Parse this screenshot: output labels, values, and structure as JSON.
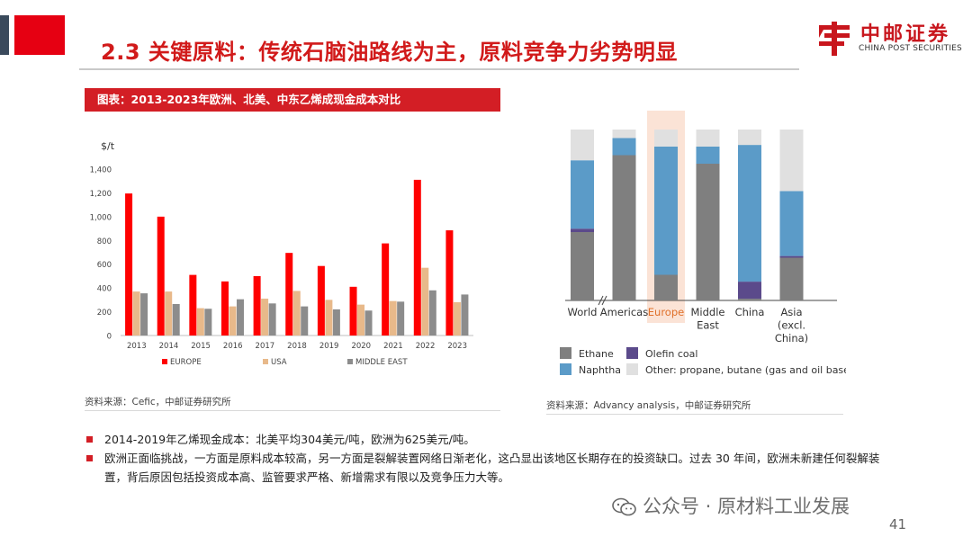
{
  "slide": {
    "title": "2.3 关键原料：传统石脑油路线为主，原料竞争力劣势明显",
    "page_number": "41"
  },
  "logo": {
    "cn": "中邮证券",
    "en": "CHINA POST SECURITIES"
  },
  "chart_banner": "图表：2013-2023年欧洲、北美、中东乙烯成现金成本对比",
  "sources": {
    "left": "资料来源：Cefic，中邮证券研究所",
    "right": "资料来源：Advancy analysis，中邮证券研究所"
  },
  "bullets": [
    "2014-2019年乙烯现金成本：北美平均304美元/吨，欧洲为625美元/吨。",
    "欧洲正面临挑战，一方面是原料成本较高，另一方面是裂解装置网络日渐老化，这凸显出该地区长期存在的投资缺口。过去 30 年间，欧洲未新建任何裂解装置，背后原因包括投资成本高、监管要求严格、新增需求有限以及竞争压力大等。"
  ],
  "watermark": "公众号 · 原材料工业发展",
  "colors": {
    "accent": "#d31e25",
    "europe": "#ff0000",
    "usa": "#e8b98a",
    "middle_east": "#8c8c8c"
  },
  "chart_data": [
    {
      "type": "bar",
      "ylabel": "$/t",
      "ylim": [
        0,
        1400
      ],
      "yticks": [
        0,
        200,
        400,
        600,
        800,
        1000,
        1200,
        1400
      ],
      "ytick_labels": [
        "0",
        "200",
        "400",
        "600",
        "800",
        "1,000",
        "1,200",
        "1,400"
      ],
      "categories": [
        "2013",
        "2014",
        "2015",
        "2016",
        "2017",
        "2018",
        "2019",
        "2020",
        "2021",
        "2022",
        "2023"
      ],
      "series": [
        {
          "name": "EUROPE",
          "color": "#ff0000",
          "values": [
            1195,
            1000,
            510,
            455,
            500,
            695,
            585,
            410,
            775,
            1310,
            885
          ]
        },
        {
          "name": "USA",
          "color": "#e8b98a",
          "values": [
            370,
            370,
            230,
            245,
            310,
            375,
            300,
            260,
            290,
            570,
            280
          ]
        },
        {
          "name": "MIDDLE EAST",
          "color": "#8c8c8c",
          "values": [
            355,
            265,
            225,
            305,
            270,
            245,
            220,
            210,
            285,
            380,
            345
          ]
        }
      ],
      "legend": "bottom"
    },
    {
      "type": "bar",
      "stacked": true,
      "normalized": true,
      "categories": [
        "World",
        "Americas",
        "Europe",
        "Middle East",
        "China",
        "Asia (excl. China)"
      ],
      "highlight": "Europe",
      "series": [
        {
          "name": "Ethane",
          "color": "#7f7f7f",
          "values": [
            0.4,
            0.85,
            0.15,
            0.8,
            0.01,
            0.25
          ]
        },
        {
          "name": "Olefin coal",
          "color": "#5b4a8b",
          "values": [
            0.02,
            0.0,
            0.0,
            0.0,
            0.1,
            0.01
          ]
        },
        {
          "name": "Naphtha",
          "color": "#5b9bc8",
          "values": [
            0.4,
            0.1,
            0.75,
            0.1,
            0.8,
            0.38
          ]
        },
        {
          "name": "Other: propane, butane (gas and oil base)",
          "color": "#e0e0e0",
          "values": [
            0.18,
            0.05,
            0.1,
            0.1,
            0.09,
            0.36
          ]
        }
      ],
      "legend": "bottom"
    }
  ]
}
